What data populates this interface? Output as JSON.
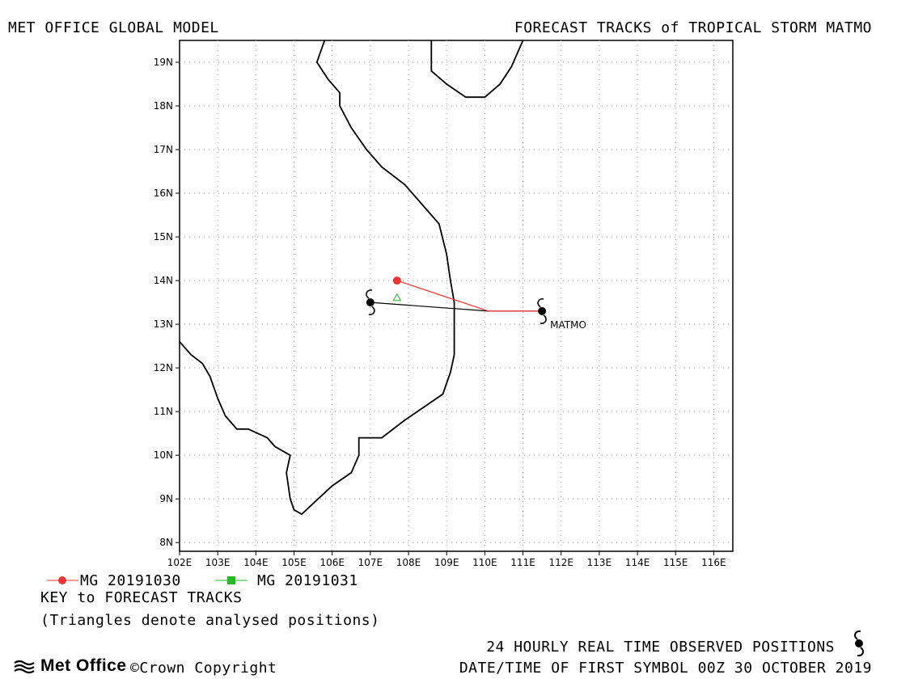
{
  "header": {
    "left_title": "MET OFFICE GLOBAL MODEL",
    "right_title": "FORECAST TRACKS of TROPICAL STORM MATMO"
  },
  "map": {
    "lon_range": [
      102,
      116.5
    ],
    "lat_range": [
      7.8,
      19.5
    ],
    "x_ticks": [
      "102E",
      "103E",
      "104E",
      "105E",
      "106E",
      "107E",
      "108E",
      "109E",
      "110E",
      "111E",
      "112E",
      "113E",
      "114E",
      "115E",
      "116E"
    ],
    "y_ticks": [
      "8N",
      "9N",
      "10N",
      "11N",
      "12N",
      "13N",
      "14N",
      "15N",
      "16N",
      "17N",
      "18N",
      "19N"
    ],
    "grid": "dotted",
    "storm_label": "MATMO",
    "colors": {
      "track_20191030": "#ee3333",
      "track_20191031": "#22bb22",
      "observed": "#000000",
      "coast": "#000000"
    },
    "tracks": [
      {
        "name": "MG 20191030",
        "points": [
          [
            111.6,
            13.3
          ],
          [
            110.1,
            13.3
          ],
          [
            107.7,
            14.0
          ]
        ]
      },
      {
        "name": "MG 20191031",
        "points": [
          [
            107.7,
            13.6
          ]
        ]
      }
    ],
    "observed_positions": [
      [
        111.5,
        13.3
      ],
      [
        107.0,
        13.5
      ]
    ],
    "observed_track": [
      [
        111.5,
        13.3
      ],
      [
        110.1,
        13.3
      ],
      [
        107.0,
        13.5
      ]
    ],
    "analysed_positions": [
      [
        107.7,
        13.6
      ]
    ]
  },
  "legend": {
    "item1": "MG 20191030",
    "item2": "MG 20191031",
    "key_title": "KEY to FORECAST TRACKS",
    "note": "(Triangles denote analysed positions)"
  },
  "footer": {
    "observed_text": "24 HOURLY REAL TIME OBSERVED POSITIONS",
    "datetime_text": "DATE/TIME OF FIRST SYMBOL 00Z 30 OCTOBER 2019",
    "logo_text": "Met Office",
    "copyright": "©Crown Copyright"
  }
}
